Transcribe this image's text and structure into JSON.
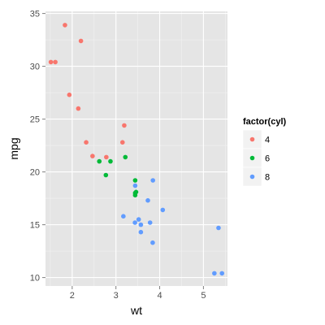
{
  "chart_data": {
    "type": "scatter",
    "xlabel": "wt",
    "ylabel": "mpg",
    "xlim": [
      1.39,
      5.55
    ],
    "ylim": [
      9.2,
      35.2
    ],
    "x_ticks": [
      2,
      3,
      4,
      5
    ],
    "y_ticks": [
      10,
      15,
      20,
      25,
      30,
      35
    ],
    "x_tick_labels": [
      "2",
      "3",
      "4",
      "5"
    ],
    "y_tick_labels": [
      "10",
      "15",
      "20",
      "25",
      "30",
      "35"
    ],
    "grid": true,
    "legend": {
      "title": "factor(cyl)",
      "placement": "right",
      "entries": [
        "4",
        "6",
        "8"
      ]
    },
    "colors": {
      "4": "#F8766D",
      "6": "#00BA38",
      "8": "#619CFF",
      "panel": "#E5E5E5",
      "grid": "#FFFFFF"
    },
    "series": [
      {
        "name": "4",
        "points": [
          [
            1.835,
            33.9
          ],
          [
            2.2,
            32.4
          ],
          [
            1.513,
            30.4
          ],
          [
            1.615,
            30.4
          ],
          [
            1.935,
            27.3
          ],
          [
            2.14,
            26.0
          ],
          [
            2.32,
            22.8
          ],
          [
            3.19,
            24.4
          ],
          [
            3.15,
            22.8
          ],
          [
            2.465,
            21.5
          ],
          [
            2.78,
            21.4
          ]
        ]
      },
      {
        "name": "6",
        "points": [
          [
            2.62,
            21.0
          ],
          [
            2.875,
            21.0
          ],
          [
            3.215,
            21.4
          ],
          [
            3.44,
            19.2
          ],
          [
            2.77,
            19.7
          ],
          [
            3.44,
            17.8
          ],
          [
            3.46,
            18.1
          ],
          [
            3.44,
            18.0
          ]
        ]
      },
      {
        "name": "8",
        "points": [
          [
            3.44,
            18.7
          ],
          [
            3.845,
            19.2
          ],
          [
            3.73,
            17.3
          ],
          [
            4.07,
            16.4
          ],
          [
            3.78,
            15.2
          ],
          [
            3.52,
            15.5
          ],
          [
            3.435,
            15.2
          ],
          [
            3.17,
            15.8
          ],
          [
            3.57,
            15.0
          ],
          [
            3.57,
            14.3
          ],
          [
            3.84,
            13.3
          ],
          [
            5.345,
            14.7
          ],
          [
            5.25,
            10.4
          ],
          [
            5.424,
            10.4
          ]
        ]
      }
    ]
  }
}
